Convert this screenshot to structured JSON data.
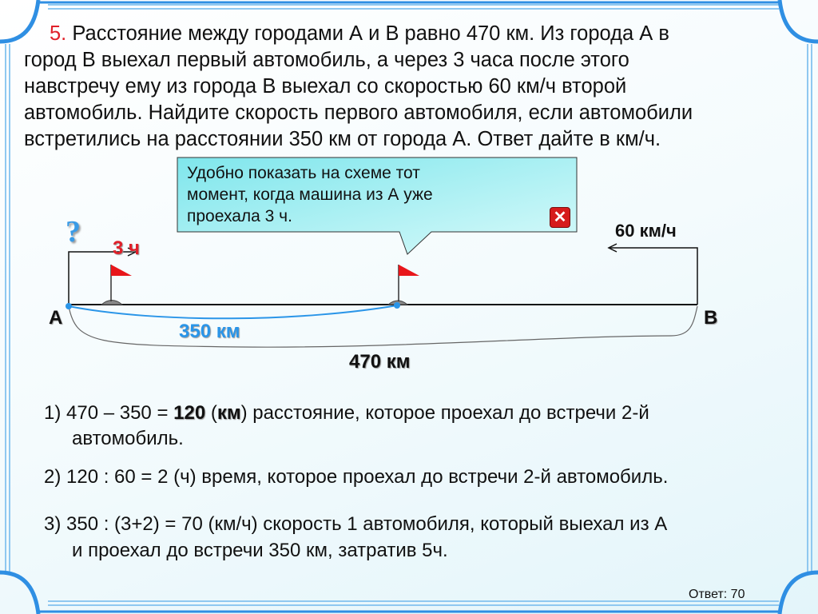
{
  "problem": {
    "number": "5.",
    "lines": [
      "Расстояние между городами А и В равно 470 км. Из города А в",
      "город В выехал первый автомобиль, а через 3 часа после этого",
      "навстречу ему из города В выехал со скоростью 60 км/ч второй",
      "автомобиль. Найдите скорость первого автомобиля, если автомобили",
      "встретились на расстоянии 350 км от города А. Ответ дайте в км/ч."
    ]
  },
  "callout": {
    "lines": [
      "Удобно показать на схеме тот",
      "момент, когда машина из А уже",
      "проехала 3 ч."
    ],
    "close_icon": "close-x-icon"
  },
  "diagram": {
    "question_mark": "?",
    "time_label": "3 ч",
    "speed_label": "60 км/ч",
    "city_a": "А",
    "city_b": "В",
    "dist_meet": "350 км",
    "dist_total": "470 км"
  },
  "solution": {
    "step1_prefix": "1)  470 – 350 = ",
    "step1_bold_value": "120",
    "step1_open": " (",
    "step1_bold_unit": "км",
    "step1_rest": ") расстояние, которое проехал до встречи 2-й",
    "step1_line2": "автомобиль.",
    "step2": "2) 120 : 60 = 2 (ч) время, которое проехал до встречи 2-й автомобиль.",
    "step3_line1": "3) 350 : (3+2) = 70 (км/ч) скорость 1 автомобиля, который выехал из А",
    "step3_line2": "и проехал до встречи 350 км, затратив 5ч."
  },
  "answer": "Ответ: 70",
  "colors": {
    "frame": "#3a9be6",
    "accent_red": "#e0202a",
    "accent_blue": "#2a95e8",
    "callout": "#9eeef0"
  }
}
